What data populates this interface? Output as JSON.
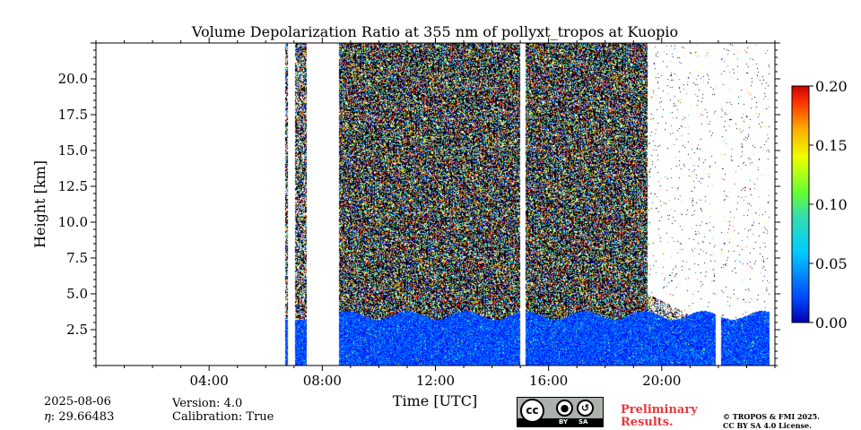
{
  "chart_data": {
    "type": "heatmap",
    "title": "Volume Depolarization Ratio at 355 nm of pollyxt_tropos at Kuopio",
    "xlabel": "Time [UTC]",
    "ylabel": "Height [km]",
    "x_ticks": [
      4,
      8,
      12,
      16,
      20
    ],
    "x_tick_labels": [
      "04:00",
      "08:00",
      "12:00",
      "16:00",
      "20:00"
    ],
    "xlim": [
      0,
      24
    ],
    "y_ticks": [
      2.5,
      5.0,
      7.5,
      10.0,
      12.5,
      15.0,
      17.5,
      20.0
    ],
    "y_tick_labels": [
      "2.5",
      "5.0",
      "7.5",
      "10.0",
      "12.5",
      "15.0",
      "17.5",
      "20.0"
    ],
    "ylim": [
      0,
      22.5
    ],
    "colorbar": {
      "ticks": [
        0.0,
        0.05,
        0.1,
        0.15,
        0.2
      ],
      "tick_labels": [
        "0.00",
        "0.05",
        "0.10",
        "0.15",
        "0.20"
      ],
      "range": [
        0.0,
        0.2
      ],
      "colormap": "jet"
    },
    "data_segments_hours": [
      [
        6.7,
        6.8
      ],
      [
        7.05,
        7.45
      ],
      [
        8.6,
        24.0
      ]
    ],
    "gap_columns_hours": [
      15.1,
      22.0,
      23.9
    ],
    "regions": [
      {
        "height_km": [
          0,
          3.5
        ],
        "typical_value": 0.04
      },
      {
        "height_km": [
          3.5,
          22.5
        ],
        "typical_value": "noisy 0.0-0.2, sparse after 19:30"
      }
    ]
  },
  "footer": {
    "date": "2025-08-06",
    "eta_label": "η",
    "eta_value": ": 29.66483",
    "version": "Version: 4.0",
    "calibration": "Calibration: True",
    "preliminary_line1": "Preliminary",
    "preliminary_line2": "Results.",
    "copyright_line1": "© TROPOS & FMI 2025.",
    "copyright_line2": "CC BY SA 4.0 License.",
    "cc_label": "cc",
    "by_label": "BY",
    "sa_label": "SA"
  }
}
